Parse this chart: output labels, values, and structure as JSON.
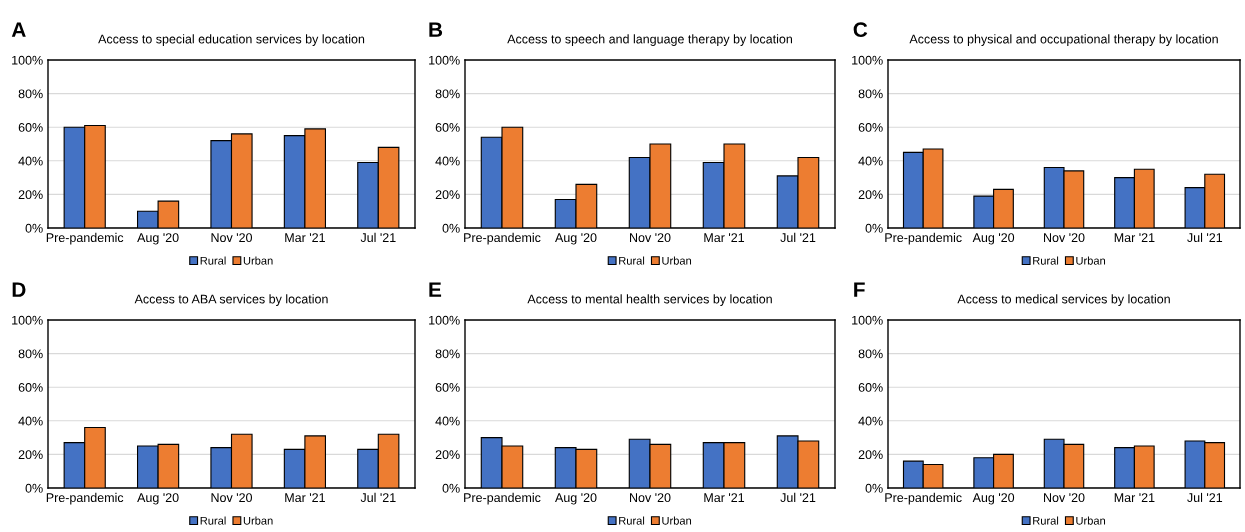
{
  "chart_data": [
    {
      "type": "bar",
      "title": "Access to special education services by location",
      "annotations": [
        "A"
      ],
      "categories": [
        "Pre-pandemic",
        "Aug '20",
        "Nov '20",
        "Mar '21",
        "Jul '21"
      ],
      "series": [
        {
          "name": "Rural",
          "color": "#4472c4",
          "values": [
            60,
            10,
            52,
            55,
            39
          ]
        },
        {
          "name": "Urban",
          "color": "#ed7d31",
          "values": [
            61,
            16,
            56,
            59,
            48
          ]
        }
      ],
      "ylim": [
        0,
        100
      ],
      "yticks": [
        {
          "value": 0,
          "label": "0%"
        },
        {
          "value": 20,
          "label": "20%"
        },
        {
          "value": 40,
          "label": "40%"
        },
        {
          "value": 60,
          "label": "60%"
        },
        {
          "value": 80,
          "label": "80%"
        },
        {
          "value": 100,
          "label": "100%"
        }
      ],
      "grid": "y",
      "legend": "bottom"
    },
    {
      "type": "bar",
      "title": "Access to speech and language therapy by location",
      "annotations": [
        "B"
      ],
      "categories": [
        "Pre-pandemic",
        "Aug '20",
        "Nov '20",
        "Mar '21",
        "Jul '21"
      ],
      "series": [
        {
          "name": "Rural",
          "color": "#4472c4",
          "values": [
            54,
            17,
            42,
            39,
            31
          ]
        },
        {
          "name": "Urban",
          "color": "#ed7d31",
          "values": [
            60,
            26,
            50,
            50,
            42
          ]
        }
      ],
      "ylim": [
        0,
        100
      ],
      "yticks": [
        {
          "value": 0,
          "label": "0%"
        },
        {
          "value": 20,
          "label": "20%"
        },
        {
          "value": 40,
          "label": "40%"
        },
        {
          "value": 60,
          "label": "60%"
        },
        {
          "value": 80,
          "label": "80%"
        },
        {
          "value": 100,
          "label": "100%"
        }
      ],
      "grid": "y",
      "legend": "bottom"
    },
    {
      "type": "bar",
      "title": "Access to physical and occupational therapy by location",
      "annotations": [
        "C"
      ],
      "categories": [
        "Pre-pandemic",
        "Aug '20",
        "Nov '20",
        "Mar '21",
        "Jul '21"
      ],
      "series": [
        {
          "name": "Rural",
          "color": "#4472c4",
          "values": [
            45,
            19,
            36,
            30,
            24
          ]
        },
        {
          "name": "Urban",
          "color": "#ed7d31",
          "values": [
            47,
            23,
            34,
            35,
            32
          ]
        }
      ],
      "ylim": [
        0,
        100
      ],
      "yticks": [
        {
          "value": 0,
          "label": "0%"
        },
        {
          "value": 20,
          "label": "20%"
        },
        {
          "value": 40,
          "label": "40%"
        },
        {
          "value": 60,
          "label": "60%"
        },
        {
          "value": 80,
          "label": "80%"
        },
        {
          "value": 100,
          "label": "100%"
        }
      ],
      "grid": "y",
      "legend": "bottom"
    },
    {
      "type": "bar",
      "title": "Access to ABA services by location",
      "annotations": [
        "D"
      ],
      "categories": [
        "Pre-pandemic",
        "Aug '20",
        "Nov '20",
        "Mar '21",
        "Jul '21"
      ],
      "series": [
        {
          "name": "Rural",
          "color": "#4472c4",
          "values": [
            27,
            25,
            24,
            23,
            23
          ]
        },
        {
          "name": "Urban",
          "color": "#ed7d31",
          "values": [
            36,
            26,
            32,
            31,
            32
          ]
        }
      ],
      "ylim": [
        0,
        100
      ],
      "yticks": [
        {
          "value": 0,
          "label": "0%"
        },
        {
          "value": 20,
          "label": "20%"
        },
        {
          "value": 40,
          "label": "40%"
        },
        {
          "value": 60,
          "label": "60%"
        },
        {
          "value": 80,
          "label": "80%"
        },
        {
          "value": 100,
          "label": "100%"
        }
      ],
      "grid": "y",
      "legend": "bottom"
    },
    {
      "type": "bar",
      "title": "Access to mental health services by location",
      "annotations": [
        "E"
      ],
      "categories": [
        "Pre-pandemic",
        "Aug '20",
        "Nov '20",
        "Mar '21",
        "Jul '21"
      ],
      "series": [
        {
          "name": "Rural",
          "color": "#4472c4",
          "values": [
            30,
            24,
            29,
            27,
            31
          ]
        },
        {
          "name": "Urban",
          "color": "#ed7d31",
          "values": [
            25,
            23,
            26,
            27,
            28
          ]
        }
      ],
      "ylim": [
        0,
        100
      ],
      "yticks": [
        {
          "value": 0,
          "label": "0%"
        },
        {
          "value": 20,
          "label": "20%"
        },
        {
          "value": 40,
          "label": "40%"
        },
        {
          "value": 60,
          "label": "60%"
        },
        {
          "value": 80,
          "label": "80%"
        },
        {
          "value": 100,
          "label": "100%"
        }
      ],
      "grid": "y",
      "legend": "bottom"
    },
    {
      "type": "bar",
      "title": "Access to medical services by location",
      "annotations": [
        "F"
      ],
      "categories": [
        "Pre-pandemic",
        "Aug '20",
        "Nov '20",
        "Mar '21",
        "Jul '21"
      ],
      "series": [
        {
          "name": "Rural",
          "color": "#4472c4",
          "values": [
            16,
            18,
            29,
            24,
            28
          ]
        },
        {
          "name": "Urban",
          "color": "#ed7d31",
          "values": [
            14,
            20,
            26,
            25,
            27
          ]
        }
      ],
      "ylim": [
        0,
        100
      ],
      "yticks": [
        {
          "value": 0,
          "label": "0%"
        },
        {
          "value": 20,
          "label": "20%"
        },
        {
          "value": 40,
          "label": "40%"
        },
        {
          "value": 60,
          "label": "60%"
        },
        {
          "value": 80,
          "label": "80%"
        },
        {
          "value": 100,
          "label": "100%"
        }
      ],
      "grid": "y",
      "legend": "bottom"
    }
  ]
}
